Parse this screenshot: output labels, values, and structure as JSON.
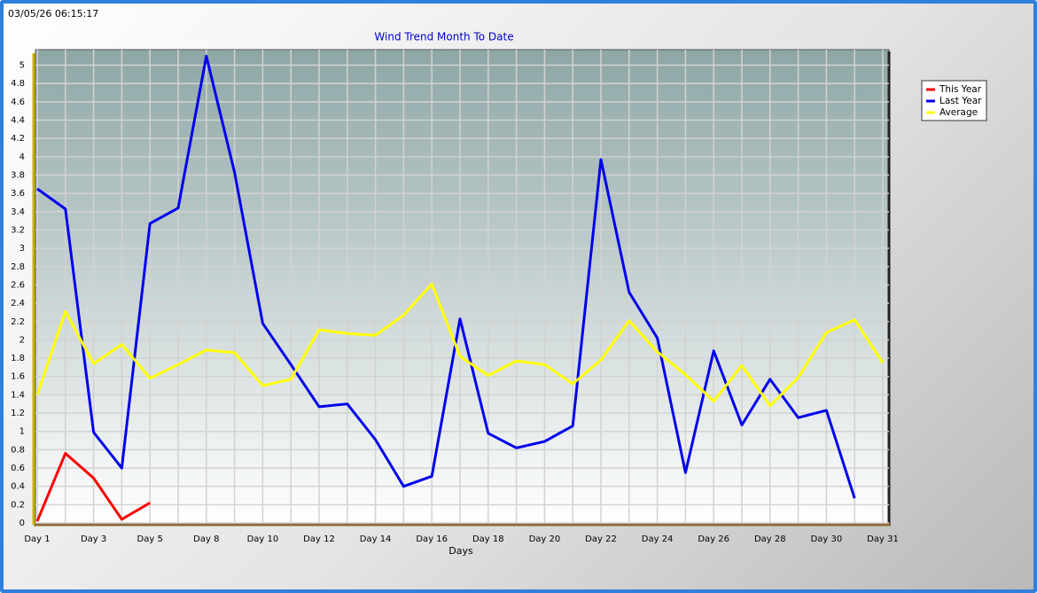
{
  "timestamp": "03/05/26 06:15:17",
  "chart_data": {
    "type": "line",
    "title": "Wind Trend Month To Date",
    "x_label": "Days",
    "categories": [
      "Day 1",
      null,
      "Day 3",
      null,
      "Day 5",
      null,
      "Day 8",
      null,
      "Day 10",
      null,
      "Day 12",
      null,
      "Day 14",
      null,
      "Day 16",
      null,
      "Day 18",
      null,
      "Day 20",
      null,
      "Day 22",
      null,
      "Day 24",
      null,
      "Day 26",
      null,
      "Day 28",
      null,
      "Day 30",
      null,
      "Day 31"
    ],
    "series": [
      {
        "name": "This Year",
        "color": "#ff0000",
        "values": [
          0.02,
          0.76,
          0.49,
          0.04,
          0.22,
          null,
          null,
          null,
          null,
          null,
          null,
          null,
          null,
          null,
          null,
          null,
          null,
          null,
          null,
          null,
          null,
          null,
          null,
          null,
          null,
          null,
          null,
          null,
          null,
          null,
          null
        ]
      },
      {
        "name": "Last Year",
        "color": "#0000ee",
        "values": [
          3.65,
          3.43,
          0.99,
          0.6,
          3.27,
          3.44,
          5.1,
          3.83,
          2.18,
          1.73,
          1.27,
          1.3,
          0.91,
          0.4,
          0.51,
          2.23,
          0.98,
          0.82,
          0.89,
          1.06,
          3.97,
          2.52,
          2.02,
          0.55,
          1.88,
          1.07,
          1.57,
          1.15,
          1.23,
          0.27,
          null
        ]
      },
      {
        "name": "Average",
        "color": "#ffff00",
        "values": [
          1.4,
          2.31,
          1.74,
          1.95,
          1.58,
          1.73,
          1.89,
          1.86,
          1.5,
          1.57,
          2.11,
          2.07,
          2.05,
          2.27,
          2.61,
          1.82,
          1.61,
          1.77,
          1.73,
          1.52,
          1.78,
          2.21,
          1.87,
          1.62,
          1.33,
          1.72,
          1.28,
          1.59,
          2.08,
          2.22,
          1.75
        ]
      }
    ],
    "ylim": [
      0,
      5.17
    ],
    "yticks": [
      0,
      0.2,
      0.4,
      0.6,
      0.8,
      1,
      1.2,
      1.4,
      1.6,
      1.8,
      2,
      2.2,
      2.4,
      2.6,
      2.8,
      3,
      3.2,
      3.4,
      3.6,
      3.8,
      4,
      4.2,
      4.4,
      4.6,
      4.8,
      5
    ],
    "grid": true,
    "legend": "top-right"
  }
}
